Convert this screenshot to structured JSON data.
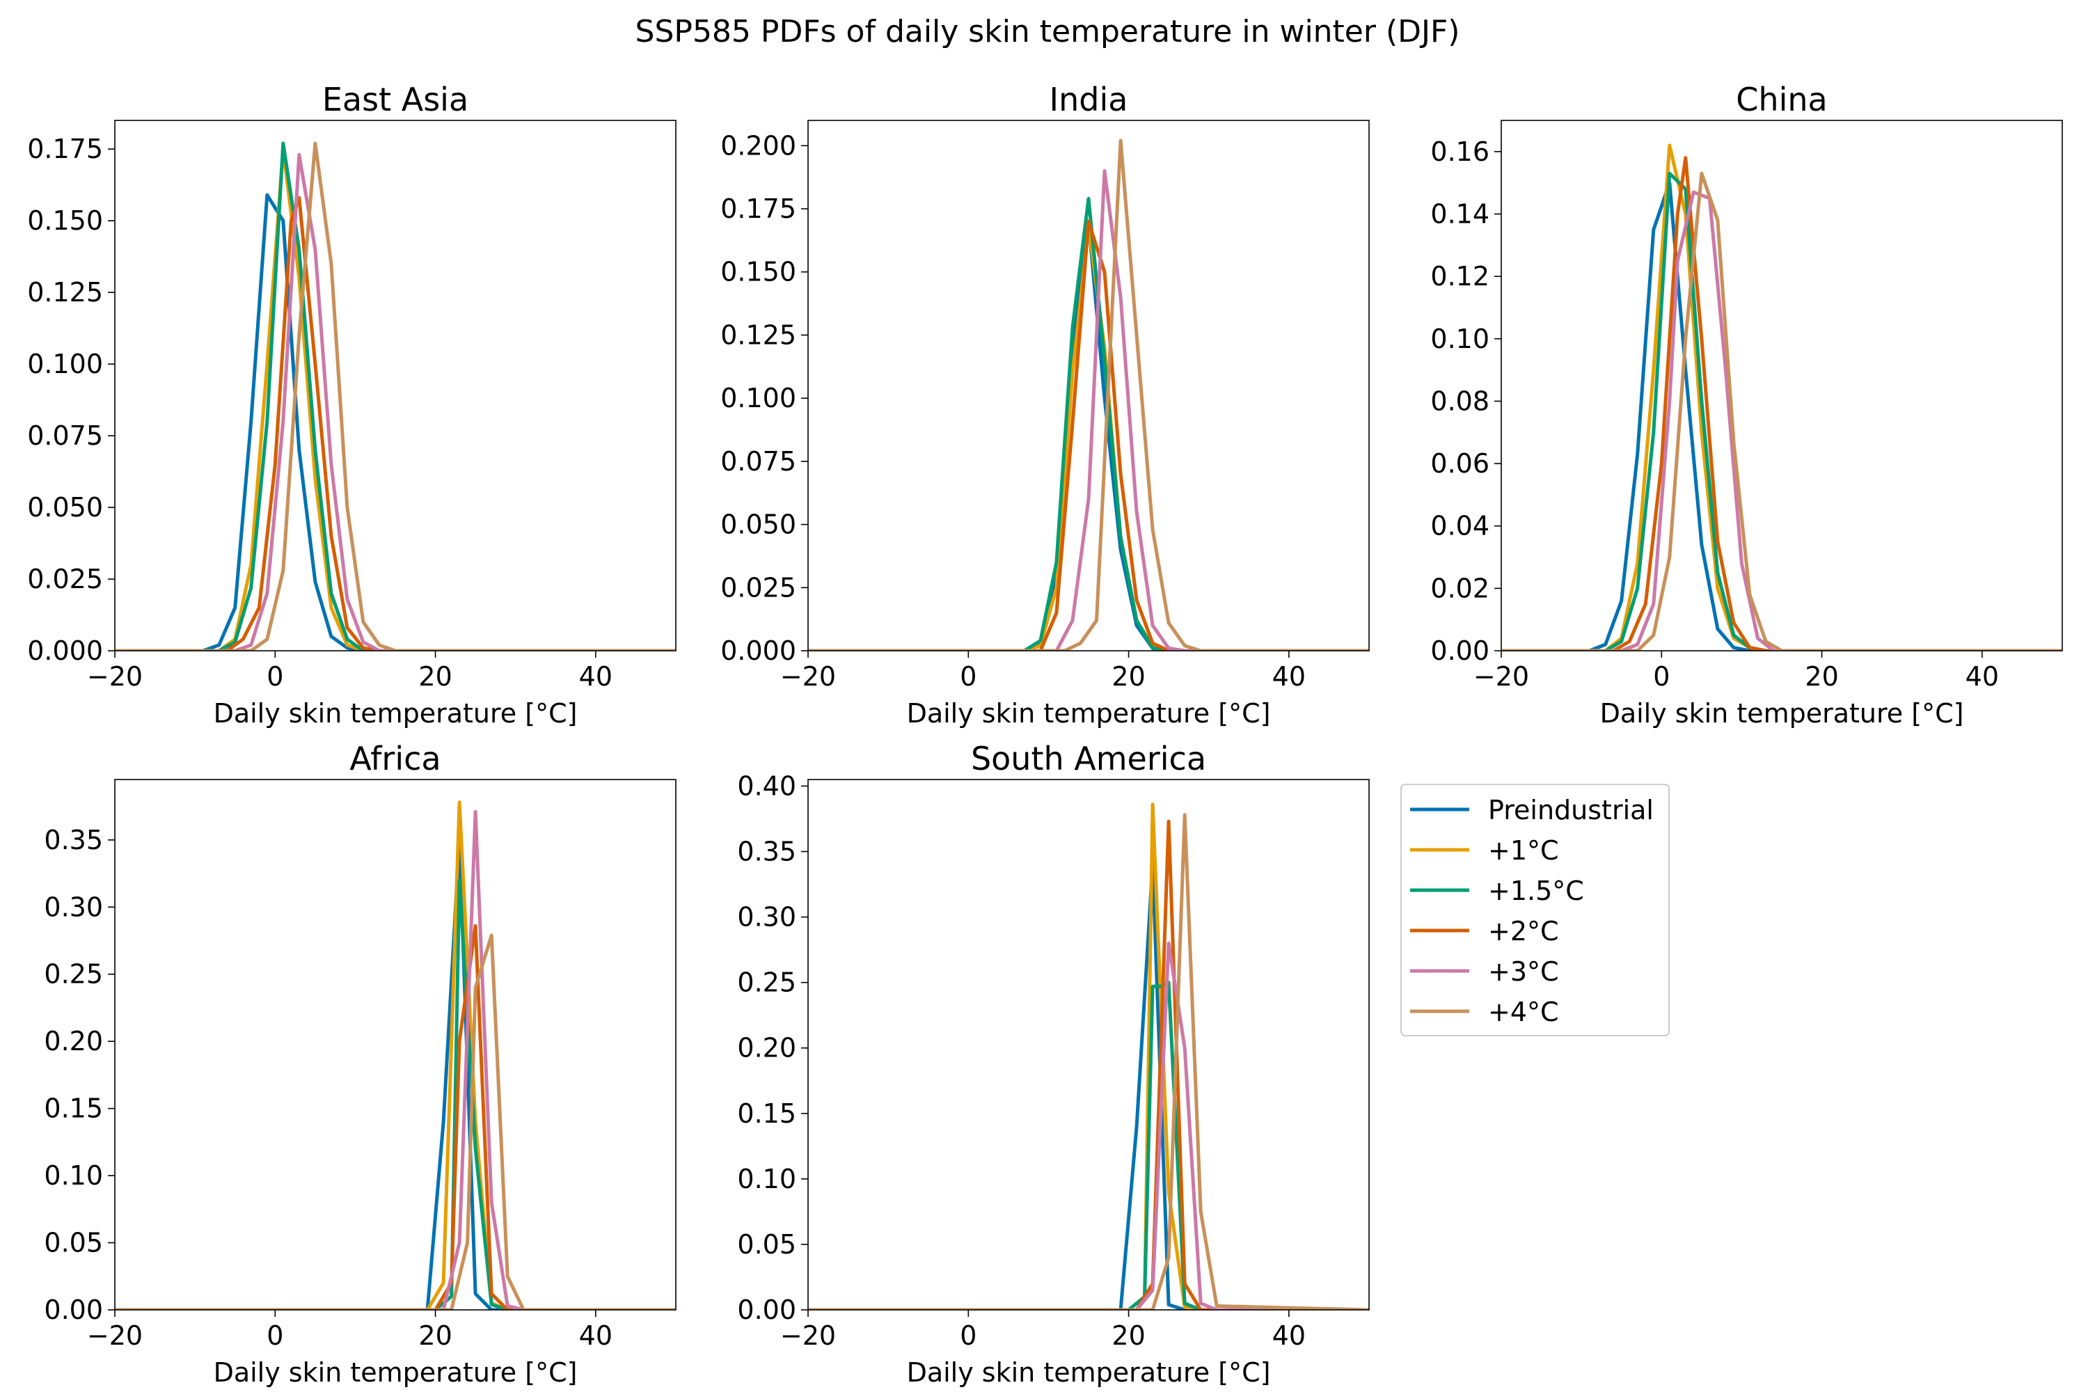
{
  "figure": {
    "suptitle": "SSP585 PDFs of daily skin temperature in winter (DJF)"
  },
  "legend": {
    "placement": "right of bottom row",
    "entries": [
      {
        "label": "Preindustrial",
        "color": "#0072b2"
      },
      {
        "label": "+1°C",
        "color": "#e69f00"
      },
      {
        "label": "+1.5°C",
        "color": "#009e73"
      },
      {
        "label": "+2°C",
        "color": "#d55e00"
      },
      {
        "label": "+3°C",
        "color": "#cc79a7"
      },
      {
        "label": "+4°C",
        "color": "#c8905a"
      }
    ]
  },
  "chart_data": [
    {
      "type": "line",
      "title": "East Asia",
      "xlabel": "Daily skin temperature [°C]",
      "ylabel": "",
      "xlim": [
        -20,
        50
      ],
      "ylim": [
        0,
        0.185
      ],
      "xticks": [
        -20,
        0,
        20,
        40
      ],
      "xtick_labels": [
        "−20",
        "0",
        "20",
        "40"
      ],
      "yticks": [
        0,
        0.025,
        0.05,
        0.075,
        0.1,
        0.125,
        0.15,
        0.175
      ],
      "ytick_labels": [
        "0.000",
        "0.025",
        "0.050",
        "0.075",
        "0.100",
        "0.125",
        "0.150",
        "0.175"
      ],
      "grid": false,
      "series": [
        {
          "name": "Preindustrial",
          "color": "#0072b2",
          "x": [
            -20,
            -9,
            -7,
            -5,
            -3,
            -1,
            1,
            3,
            5,
            7,
            9,
            11,
            50
          ],
          "y": [
            0,
            0,
            0.002,
            0.015,
            0.08,
            0.159,
            0.15,
            0.07,
            0.024,
            0.005,
            0.001,
            0,
            0
          ]
        },
        {
          "name": "+1°C",
          "color": "#e69f00",
          "x": [
            -20,
            -7,
            -5,
            -3,
            -1,
            1,
            3,
            5,
            7,
            9,
            11,
            50
          ],
          "y": [
            0,
            0,
            0.004,
            0.03,
            0.1,
            0.175,
            0.13,
            0.06,
            0.015,
            0.002,
            0,
            0
          ]
        },
        {
          "name": "+1.5°C",
          "color": "#009e73",
          "x": [
            -20,
            -7,
            -5,
            -3,
            -1,
            1,
            3,
            5,
            7,
            9,
            11,
            50
          ],
          "y": [
            0,
            0,
            0.003,
            0.022,
            0.08,
            0.177,
            0.14,
            0.07,
            0.02,
            0.004,
            0,
            0
          ]
        },
        {
          "name": "+2°C",
          "color": "#d55e00",
          "x": [
            -20,
            -6,
            -4,
            -2,
            0,
            2,
            3,
            5,
            7,
            9,
            11,
            13,
            50
          ],
          "y": [
            0,
            0,
            0.004,
            0.015,
            0.065,
            0.15,
            0.158,
            0.1,
            0.04,
            0.008,
            0.001,
            0,
            0
          ]
        },
        {
          "name": "+3°C",
          "color": "#cc79a7",
          "x": [
            -20,
            -5,
            -3,
            -1,
            1,
            3,
            5,
            7,
            9,
            11,
            13,
            50
          ],
          "y": [
            0,
            0,
            0.002,
            0.02,
            0.08,
            0.173,
            0.14,
            0.065,
            0.018,
            0.003,
            0,
            0
          ]
        },
        {
          "name": "+4°C",
          "color": "#c8905a",
          "x": [
            -20,
            -3,
            -1,
            1,
            3,
            5,
            7,
            9,
            11,
            13,
            15,
            50
          ],
          "y": [
            0,
            0,
            0.004,
            0.028,
            0.11,
            0.177,
            0.135,
            0.05,
            0.01,
            0.002,
            0,
            0
          ]
        }
      ]
    },
    {
      "type": "line",
      "title": "India",
      "xlabel": "Daily skin temperature [°C]",
      "ylabel": "",
      "xlim": [
        -20,
        50
      ],
      "ylim": [
        0,
        0.21
      ],
      "xticks": [
        -20,
        0,
        20,
        40
      ],
      "xtick_labels": [
        "−20",
        "0",
        "20",
        "40"
      ],
      "yticks": [
        0,
        0.025,
        0.05,
        0.075,
        0.1,
        0.125,
        0.15,
        0.175,
        0.2
      ],
      "ytick_labels": [
        "0.000",
        "0.025",
        "0.050",
        "0.075",
        "0.100",
        "0.125",
        "0.150",
        "0.175",
        "0.200"
      ],
      "grid": false,
      "series": [
        {
          "name": "Preindustrial",
          "color": "#0072b2",
          "x": [
            -20,
            7,
            9,
            11,
            13,
            15,
            17,
            19,
            21,
            23,
            25,
            50
          ],
          "y": [
            0,
            0,
            0.003,
            0.03,
            0.12,
            0.17,
            0.1,
            0.04,
            0.01,
            0.001,
            0,
            0
          ]
        },
        {
          "name": "+1°C",
          "color": "#e69f00",
          "x": [
            -20,
            7,
            9,
            11,
            13,
            15,
            17,
            19,
            21,
            23,
            25,
            50
          ],
          "y": [
            0,
            0,
            0.002,
            0.025,
            0.11,
            0.168,
            0.12,
            0.045,
            0.012,
            0.002,
            0,
            0
          ]
        },
        {
          "name": "+1.5°C",
          "color": "#009e73",
          "x": [
            -20,
            7,
            9,
            11,
            13,
            15,
            17,
            19,
            21,
            23,
            25,
            50
          ],
          "y": [
            0,
            0,
            0.004,
            0.035,
            0.128,
            0.179,
            0.115,
            0.045,
            0.012,
            0.001,
            0,
            0
          ]
        },
        {
          "name": "+2°C",
          "color": "#d55e00",
          "x": [
            -20,
            9,
            11,
            13,
            15,
            17,
            19,
            21,
            23,
            25,
            50
          ],
          "y": [
            0,
            0,
            0.015,
            0.09,
            0.17,
            0.15,
            0.07,
            0.02,
            0.003,
            0,
            0
          ]
        },
        {
          "name": "+3°C",
          "color": "#cc79a7",
          "x": [
            -20,
            11,
            13,
            15,
            17,
            19,
            21,
            23,
            25,
            27,
            50
          ],
          "y": [
            0,
            0,
            0.012,
            0.06,
            0.19,
            0.14,
            0.055,
            0.01,
            0.001,
            0,
            0
          ]
        },
        {
          "name": "+4°C",
          "color": "#c8905a",
          "x": [
            -20,
            12,
            14,
            16,
            19,
            21,
            23,
            25,
            27,
            29,
            50
          ],
          "y": [
            0,
            0,
            0.003,
            0.012,
            0.202,
            0.125,
            0.048,
            0.011,
            0.002,
            0,
            0
          ]
        }
      ]
    },
    {
      "type": "line",
      "title": "China",
      "xlabel": "Daily skin temperature [°C]",
      "ylabel": "",
      "xlim": [
        -20,
        50
      ],
      "ylim": [
        0,
        0.17
      ],
      "xticks": [
        -20,
        0,
        20,
        40
      ],
      "xtick_labels": [
        "−20",
        "0",
        "20",
        "40"
      ],
      "yticks": [
        0,
        0.02,
        0.04,
        0.06,
        0.08,
        0.1,
        0.12,
        0.14,
        0.16
      ],
      "ytick_labels": [
        "0.00",
        "0.02",
        "0.04",
        "0.06",
        "0.08",
        "0.10",
        "0.12",
        "0.14",
        "0.16"
      ],
      "grid": false,
      "series": [
        {
          "name": "Preindustrial",
          "color": "#0072b2",
          "x": [
            -20,
            -9,
            -7,
            -5,
            -3,
            -1,
            1,
            3,
            5,
            7,
            9,
            11,
            50
          ],
          "y": [
            0,
            0,
            0.002,
            0.016,
            0.063,
            0.135,
            0.15,
            0.09,
            0.034,
            0.007,
            0.001,
            0,
            0
          ]
        },
        {
          "name": "+1°C",
          "color": "#e69f00",
          "x": [
            -20,
            -7,
            -5,
            -3,
            -1,
            1,
            3,
            5,
            7,
            9,
            11,
            13,
            50
          ],
          "y": [
            0,
            0,
            0.004,
            0.028,
            0.09,
            0.162,
            0.14,
            0.07,
            0.02,
            0.004,
            0.001,
            0,
            0
          ]
        },
        {
          "name": "+1.5°C",
          "color": "#009e73",
          "x": [
            -20,
            -7,
            -5,
            -3,
            -1,
            1,
            3,
            5,
            7,
            9,
            11,
            13,
            50
          ],
          "y": [
            0,
            0,
            0.003,
            0.02,
            0.07,
            0.153,
            0.148,
            0.08,
            0.025,
            0.005,
            0.001,
            0,
            0
          ]
        },
        {
          "name": "+2°C",
          "color": "#d55e00",
          "x": [
            -20,
            -6,
            -4,
            -2,
            0,
            2,
            3,
            5,
            7,
            9,
            11,
            13,
            50
          ],
          "y": [
            0,
            0,
            0.003,
            0.015,
            0.06,
            0.14,
            0.158,
            0.1,
            0.035,
            0.009,
            0.001,
            0,
            0
          ]
        },
        {
          "name": "+3°C",
          "color": "#cc79a7",
          "x": [
            -20,
            -5,
            -3,
            -1,
            1,
            2,
            4,
            6,
            8,
            10,
            12,
            14,
            50
          ],
          "y": [
            0,
            0,
            0.002,
            0.015,
            0.08,
            0.125,
            0.147,
            0.145,
            0.09,
            0.028,
            0.004,
            0,
            0
          ]
        },
        {
          "name": "+4°C",
          "color": "#c8905a",
          "x": [
            -20,
            -3,
            -1,
            1,
            3,
            5,
            7,
            9,
            11,
            13,
            15,
            50
          ],
          "y": [
            0,
            0,
            0.005,
            0.03,
            0.1,
            0.153,
            0.138,
            0.067,
            0.018,
            0.003,
            0,
            0
          ]
        }
      ]
    },
    {
      "type": "line",
      "title": "Africa",
      "xlabel": "Daily skin temperature [°C]",
      "ylabel": "",
      "xlim": [
        -20,
        50
      ],
      "ylim": [
        0,
        0.395
      ],
      "xticks": [
        -20,
        0,
        20,
        40
      ],
      "xtick_labels": [
        "−20",
        "0",
        "20",
        "40"
      ],
      "yticks": [
        0,
        0.05,
        0.1,
        0.15,
        0.2,
        0.25,
        0.3,
        0.35
      ],
      "ytick_labels": [
        "0.00",
        "0.05",
        "0.10",
        "0.15",
        "0.20",
        "0.25",
        "0.30",
        "0.35"
      ],
      "grid": false,
      "series": [
        {
          "name": "Preindustrial",
          "color": "#0072b2",
          "x": [
            -20,
            19,
            21,
            23,
            25,
            27,
            50
          ],
          "y": [
            0,
            0,
            0.14,
            0.35,
            0.012,
            0,
            0
          ]
        },
        {
          "name": "+1°C",
          "color": "#e69f00",
          "x": [
            -20,
            19,
            21,
            23,
            25,
            27,
            29,
            50
          ],
          "y": [
            0,
            0,
            0.02,
            0.378,
            0.14,
            0.005,
            0,
            0
          ]
        },
        {
          "name": "+1.5°C",
          "color": "#009e73",
          "x": [
            -20,
            20,
            22,
            23,
            25,
            27,
            29,
            50
          ],
          "y": [
            0,
            0,
            0.01,
            0.32,
            0.12,
            0.004,
            0,
            0
          ]
        },
        {
          "name": "+2°C",
          "color": "#d55e00",
          "x": [
            -20,
            20,
            22,
            23,
            25,
            27,
            29,
            50
          ],
          "y": [
            0,
            0,
            0.02,
            0.2,
            0.286,
            0.012,
            0,
            0
          ]
        },
        {
          "name": "+3°C",
          "color": "#cc79a7",
          "x": [
            -20,
            21,
            23,
            25,
            27,
            29,
            31,
            50
          ],
          "y": [
            0,
            0,
            0.05,
            0.371,
            0.08,
            0.003,
            0,
            0
          ]
        },
        {
          "name": "+4°C",
          "color": "#c8905a",
          "x": [
            -20,
            22,
            24,
            25,
            27,
            29,
            31,
            50
          ],
          "y": [
            0,
            0,
            0.05,
            0.24,
            0.279,
            0.025,
            0,
            0
          ]
        }
      ]
    },
    {
      "type": "line",
      "title": "South America",
      "xlabel": "Daily skin temperature [°C]",
      "ylabel": "",
      "xlim": [
        -20,
        50
      ],
      "ylim": [
        0,
        0.405
      ],
      "xticks": [
        -20,
        0,
        20,
        40
      ],
      "xtick_labels": [
        "−20",
        "0",
        "20",
        "40"
      ],
      "yticks": [
        0,
        0.05,
        0.1,
        0.15,
        0.2,
        0.25,
        0.3,
        0.35,
        0.4
      ],
      "ytick_labels": [
        "0.00",
        "0.05",
        "0.10",
        "0.15",
        "0.20",
        "0.25",
        "0.30",
        "0.35",
        "0.40"
      ],
      "grid": false,
      "series": [
        {
          "name": "Preindustrial",
          "color": "#0072b2",
          "x": [
            -20,
            19,
            21,
            23,
            25,
            27,
            50
          ],
          "y": [
            0,
            0,
            0.14,
            0.34,
            0.004,
            0,
            0
          ]
        },
        {
          "name": "+1°C",
          "color": "#e69f00",
          "x": [
            -20,
            20,
            22,
            23,
            25,
            27,
            29,
            50
          ],
          "y": [
            0,
            0,
            0.01,
            0.386,
            0.09,
            0.002,
            0,
            0
          ]
        },
        {
          "name": "+1.5°C",
          "color": "#009e73",
          "x": [
            -20,
            20,
            22,
            23,
            24,
            25,
            27,
            29,
            50
          ],
          "y": [
            0,
            0,
            0.01,
            0.247,
            0.247,
            0.25,
            0.005,
            0,
            0
          ]
        },
        {
          "name": "+2°C",
          "color": "#d55e00",
          "x": [
            -20,
            21,
            23,
            25,
            27,
            29,
            50
          ],
          "y": [
            0,
            0,
            0.02,
            0.373,
            0.02,
            0,
            0
          ]
        },
        {
          "name": "+3°C",
          "color": "#cc79a7",
          "x": [
            -20,
            21,
            23,
            25,
            27,
            29,
            31,
            50
          ],
          "y": [
            0,
            0,
            0.015,
            0.28,
            0.2,
            0.005,
            0,
            0
          ]
        },
        {
          "name": "+4°C",
          "color": "#c8905a",
          "x": [
            -20,
            23,
            25,
            27,
            29,
            31,
            50
          ],
          "y": [
            0,
            0,
            0.04,
            0.378,
            0.075,
            0.003,
            0
          ]
        }
      ]
    }
  ]
}
